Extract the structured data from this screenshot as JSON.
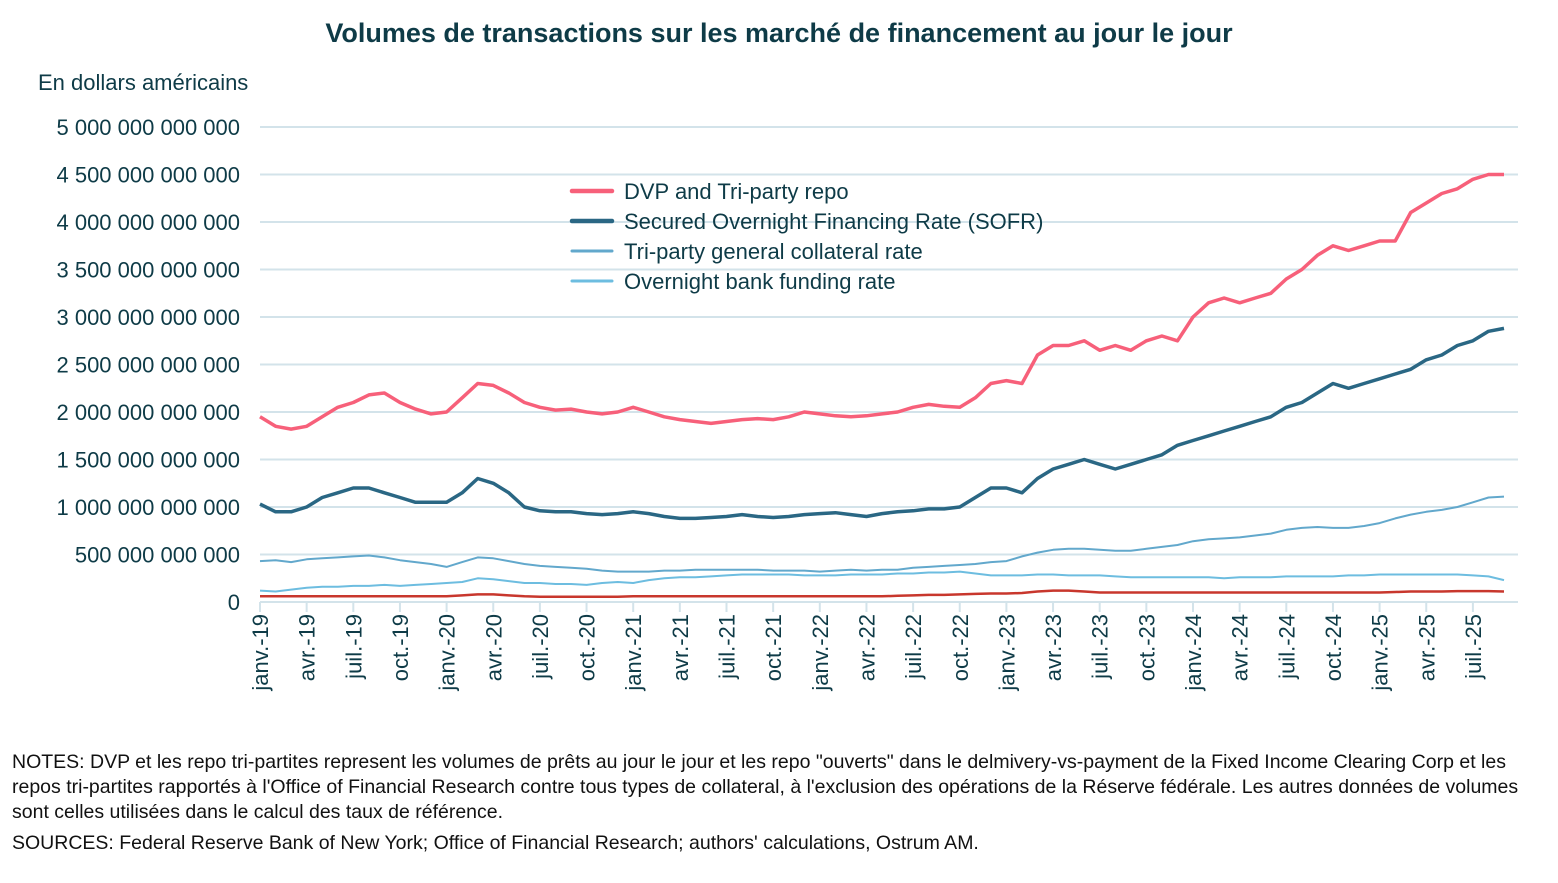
{
  "chart_data": {
    "type": "line",
    "title": "Volumes de transactions sur les marché de financement au jour le jour",
    "ylabel": "En dollars américains",
    "ylim": [
      0,
      5000000000000
    ],
    "unit_values": "billions USD",
    "y_ticks": [
      "0",
      "500 000 000 000",
      "1 000 000 000 000",
      "1 500 000 000 000",
      "2 000 000 000 000",
      "2 500 000 000 000",
      "3 000 000 000 000",
      "3 500 000 000 000",
      "4 000 000 000 000",
      "4 500 000 000 000",
      "5 000 000 000 000"
    ],
    "x_ticks": [
      "janv.-19",
      "avr.-19",
      "juil.-19",
      "oct.-19",
      "janv.-20",
      "avr.-20",
      "juil.-20",
      "oct.-20",
      "janv.-21",
      "avr.-21",
      "juil.-21",
      "oct.-21",
      "janv.-22",
      "avr.-22",
      "juil.-22",
      "oct.-22",
      "janv.-23",
      "avr.-23",
      "juil.-23",
      "oct.-23",
      "janv.-24",
      "avr.-24",
      "juil.-24",
      "oct.-24",
      "janv.-25",
      "avr.-25",
      "juil.-25"
    ],
    "grid": true,
    "legend_position": "top-center",
    "x": [
      "2019-01",
      "2019-02",
      "2019-03",
      "2019-04",
      "2019-05",
      "2019-06",
      "2019-07",
      "2019-08",
      "2019-09",
      "2019-10",
      "2019-11",
      "2019-12",
      "2020-01",
      "2020-02",
      "2020-03",
      "2020-04",
      "2020-05",
      "2020-06",
      "2020-07",
      "2020-08",
      "2020-09",
      "2020-10",
      "2020-11",
      "2020-12",
      "2021-01",
      "2021-02",
      "2021-03",
      "2021-04",
      "2021-05",
      "2021-06",
      "2021-07",
      "2021-08",
      "2021-09",
      "2021-10",
      "2021-11",
      "2021-12",
      "2022-01",
      "2022-02",
      "2022-03",
      "2022-04",
      "2022-05",
      "2022-06",
      "2022-07",
      "2022-08",
      "2022-09",
      "2022-10",
      "2022-11",
      "2022-12",
      "2023-01",
      "2023-02",
      "2023-03",
      "2023-04",
      "2023-05",
      "2023-06",
      "2023-07",
      "2023-08",
      "2023-09",
      "2023-10",
      "2023-11",
      "2023-12",
      "2024-01",
      "2024-02",
      "2024-03",
      "2024-04",
      "2024-05",
      "2024-06",
      "2024-07",
      "2024-08",
      "2024-09",
      "2024-10",
      "2024-11",
      "2024-12",
      "2025-01",
      "2025-02",
      "2025-03",
      "2025-04",
      "2025-05",
      "2025-06",
      "2025-07",
      "2025-08",
      "2025-09"
    ],
    "series": [
      {
        "name": "DVP and Tri-party repo",
        "color": "#f7607a",
        "width": 3.5,
        "values": [
          1950,
          1850,
          1820,
          1850,
          1950,
          2050,
          2100,
          2180,
          2200,
          2100,
          2030,
          1980,
          2000,
          2150,
          2300,
          2280,
          2200,
          2100,
          2050,
          2020,
          2030,
          2000,
          1980,
          2000,
          2050,
          2000,
          1950,
          1920,
          1900,
          1880,
          1900,
          1920,
          1930,
          1920,
          1950,
          2000,
          1980,
          1960,
          1950,
          1960,
          1980,
          2000,
          2050,
          2080,
          2060,
          2050,
          2150,
          2300,
          2330,
          2300,
          2600,
          2700,
          2700,
          2750,
          2650,
          2700,
          2650,
          2750,
          2800,
          2750,
          3000,
          3150,
          3200,
          3150,
          3200,
          3250,
          3400,
          3500,
          3650,
          3750,
          3700,
          3750,
          3800,
          3800,
          4100,
          4200,
          4300,
          4350,
          4450,
          4500,
          4500
        ]
      },
      {
        "name": "Secured Overnight Financing Rate (SOFR)",
        "color": "#2a6784",
        "width": 3.5,
        "values": [
          1030,
          950,
          950,
          1000,
          1100,
          1150,
          1200,
          1200,
          1150,
          1100,
          1050,
          1050,
          1050,
          1150,
          1300,
          1250,
          1150,
          1000,
          960,
          950,
          950,
          930,
          920,
          930,
          950,
          930,
          900,
          880,
          880,
          890,
          900,
          920,
          900,
          890,
          900,
          920,
          930,
          940,
          920,
          900,
          930,
          950,
          960,
          980,
          980,
          1000,
          1100,
          1200,
          1200,
          1150,
          1300,
          1400,
          1450,
          1500,
          1450,
          1400,
          1450,
          1500,
          1550,
          1650,
          1700,
          1750,
          1800,
          1850,
          1900,
          1950,
          2050,
          2100,
          2200,
          2300,
          2250,
          2300,
          2350,
          2400,
          2450,
          2550,
          2600,
          2700,
          2750,
          2850,
          2880
        ]
      },
      {
        "name": "Tri-party general collateral rate",
        "color": "#62a8cc",
        "width": 2,
        "values": [
          430,
          440,
          420,
          450,
          460,
          470,
          480,
          490,
          470,
          440,
          420,
          400,
          370,
          420,
          470,
          460,
          430,
          400,
          380,
          370,
          360,
          350,
          330,
          320,
          320,
          320,
          330,
          330,
          340,
          340,
          340,
          340,
          340,
          330,
          330,
          330,
          320,
          330,
          340,
          330,
          340,
          340,
          360,
          370,
          380,
          390,
          400,
          420,
          430,
          480,
          520,
          550,
          560,
          560,
          550,
          540,
          540,
          560,
          580,
          600,
          640,
          660,
          670,
          680,
          700,
          720,
          760,
          780,
          790,
          780,
          780,
          800,
          830,
          880,
          920,
          950,
          970,
          1000,
          1050,
          1100,
          1110
        ]
      },
      {
        "name": "Overnight bank funding rate",
        "color": "#6dbde0",
        "width": 2,
        "values": [
          120,
          110,
          130,
          150,
          160,
          160,
          170,
          170,
          180,
          170,
          180,
          190,
          200,
          210,
          250,
          240,
          220,
          200,
          200,
          190,
          190,
          180,
          200,
          210,
          200,
          230,
          250,
          260,
          260,
          270,
          280,
          290,
          290,
          290,
          290,
          280,
          280,
          280,
          290,
          290,
          290,
          300,
          300,
          310,
          310,
          320,
          300,
          280,
          280,
          280,
          290,
          290,
          280,
          280,
          280,
          270,
          260,
          260,
          260,
          260,
          260,
          260,
          250,
          260,
          260,
          260,
          270,
          270,
          270,
          270,
          280,
          280,
          290,
          290,
          290,
          290,
          290,
          290,
          280,
          270,
          230
        ]
      },
      {
        "color": "#c8372d",
        "width": 2.5,
        "values": [
          60,
          60,
          60,
          60,
          60,
          60,
          60,
          60,
          60,
          60,
          60,
          60,
          60,
          70,
          80,
          80,
          70,
          60,
          55,
          55,
          55,
          55,
          55,
          55,
          60,
          60,
          60,
          60,
          60,
          60,
          60,
          60,
          60,
          60,
          60,
          60,
          60,
          60,
          60,
          60,
          60,
          65,
          70,
          75,
          75,
          80,
          85,
          90,
          90,
          95,
          110,
          120,
          120,
          110,
          100,
          100,
          100,
          100,
          100,
          100,
          100,
          100,
          100,
          100,
          100,
          100,
          100,
          100,
          100,
          100,
          100,
          100,
          100,
          105,
          110,
          110,
          110,
          115,
          115,
          115,
          110
        ]
      }
    ]
  },
  "notes": "NOTES: DVP et les repo tri-partites represent les volumes de prêts au jour le jour et les repo \"ouverts\" dans le delmivery-vs-payment de la Fixed Income Clearing Corp et les repos tri-partites rapportés à l'Office of Financial Research contre tous types de collateral, à l'exclusion des opérations de la Réserve fédérale. Les autres données de volumes sont celles utilisées dans le calcul des taux de référence.",
  "sources": "SOURCES: Federal Reserve Bank of New York; Office of Financial Research; authors' calculations, Ostrum AM."
}
